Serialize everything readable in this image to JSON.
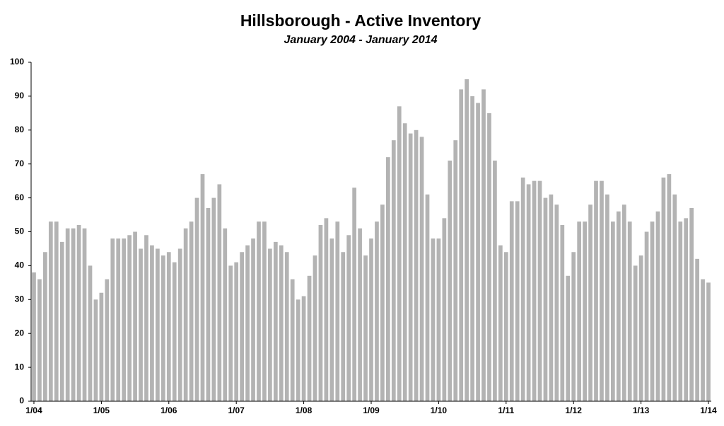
{
  "chart_data": {
    "type": "bar",
    "title": "Hillsborough - Active Inventory",
    "subtitle": "January 2004 - January 2014",
    "categories": [
      "1/04",
      null,
      null,
      null,
      null,
      null,
      null,
      null,
      null,
      null,
      null,
      null,
      "1/05",
      null,
      null,
      null,
      null,
      null,
      null,
      null,
      null,
      null,
      null,
      null,
      "1/06",
      null,
      null,
      null,
      null,
      null,
      null,
      null,
      null,
      null,
      null,
      null,
      "1/07",
      null,
      null,
      null,
      null,
      null,
      null,
      null,
      null,
      null,
      null,
      null,
      "1/08",
      null,
      null,
      null,
      null,
      null,
      null,
      null,
      null,
      null,
      null,
      null,
      "1/09",
      null,
      null,
      null,
      null,
      null,
      null,
      null,
      null,
      null,
      null,
      null,
      "1/10",
      null,
      null,
      null,
      null,
      null,
      null,
      null,
      null,
      null,
      null,
      null,
      "1/11",
      null,
      null,
      null,
      null,
      null,
      null,
      null,
      null,
      null,
      null,
      null,
      "1/12",
      null,
      null,
      null,
      null,
      null,
      null,
      null,
      null,
      null,
      null,
      null,
      "1/13",
      null,
      null,
      null,
      null,
      null,
      null,
      null,
      null,
      null,
      null,
      null,
      "1/14"
    ],
    "values": [
      38,
      36,
      44,
      53,
      53,
      47,
      51,
      51,
      52,
      51,
      40,
      30,
      32,
      36,
      48,
      48,
      48,
      49,
      50,
      45,
      49,
      46,
      45,
      43,
      44,
      41,
      45,
      51,
      53,
      60,
      67,
      57,
      60,
      64,
      51,
      40,
      41,
      44,
      46,
      48,
      53,
      53,
      45,
      47,
      46,
      44,
      36,
      30,
      31,
      37,
      43,
      52,
      54,
      48,
      53,
      44,
      49,
      63,
      51,
      43,
      48,
      53,
      58,
      72,
      77,
      87,
      82,
      79,
      80,
      78,
      61,
      48,
      48,
      54,
      71,
      77,
      92,
      95,
      90,
      88,
      92,
      85,
      71,
      46,
      44,
      59,
      59,
      66,
      64,
      65,
      65,
      60,
      61,
      58,
      52,
      37,
      44,
      53,
      53,
      58,
      65,
      65,
      61,
      53,
      56,
      58,
      53,
      40,
      43,
      50,
      53,
      56,
      66,
      67,
      61,
      53,
      54,
      57,
      42,
      36,
      35
    ],
    "color": "#b3b3b3",
    "ylim": [
      0,
      100
    ],
    "yticks": [
      0,
      10,
      20,
      30,
      40,
      50,
      60,
      70,
      80,
      90,
      100
    ],
    "grid": false
  }
}
